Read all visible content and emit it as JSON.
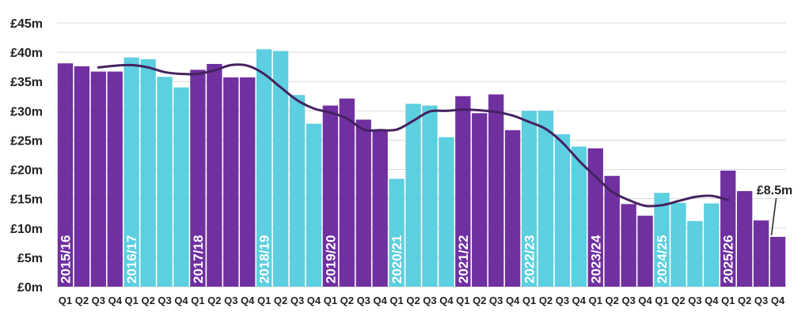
{
  "chart_data": {
    "type": "bar",
    "title": "",
    "xlabel": "",
    "ylabel": "",
    "ylim": [
      0,
      45
    ],
    "yticks": [
      "£0m",
      "£5m",
      "£10m",
      "£15m",
      "£20m",
      "£25m",
      "£30m",
      "£35m",
      "£40m",
      "£45m"
    ],
    "grid": true,
    "years": [
      "2015/16",
      "2016/17",
      "2017/18",
      "2018/19",
      "2019/20",
      "2020/21",
      "2021/22",
      "2022/23",
      "2023/24",
      "2024/25",
      "2025/26"
    ],
    "quarter_labels": [
      "Q1",
      "Q2",
      "Q3",
      "Q4"
    ],
    "year_colors": [
      "#7030a0",
      "#5ccfe0"
    ],
    "trend_color": "#44225f",
    "values": [
      38.1,
      37.6,
      36.7,
      36.7,
      39.1,
      38.8,
      35.8,
      34.0,
      37.0,
      38.0,
      35.7,
      35.7,
      40.5,
      40.2,
      32.7,
      27.8,
      30.9,
      32.1,
      28.5,
      26.6,
      18.4,
      31.2,
      30.9,
      25.5,
      32.5,
      29.6,
      32.8,
      26.7,
      30.0,
      30.0,
      26.0,
      23.9,
      23.6,
      18.9,
      14.1,
      12.1,
      16.0,
      14.3,
      11.2,
      14.2,
      19.8,
      16.3,
      11.3,
      8.5
    ],
    "trend": [
      null,
      null,
      37.4,
      37.7,
      37.8,
      37.4,
      36.6,
      36.3,
      36.3,
      36.9,
      37.8,
      37.7,
      36.3,
      34.0,
      31.8,
      30.4,
      29.7,
      28.7,
      26.8,
      26.7,
      26.8,
      28.3,
      29.9,
      30.0,
      30.2,
      30.1,
      29.8,
      29.2,
      28.1,
      26.9,
      24.6,
      21.5,
      18.8,
      16.2,
      14.8,
      13.8,
      13.9,
      14.6,
      15.3,
      15.5,
      14.8,
      null,
      null,
      null
    ],
    "annotations": [
      {
        "text": "£8.5m",
        "index": 43,
        "value": 8.5
      }
    ]
  }
}
